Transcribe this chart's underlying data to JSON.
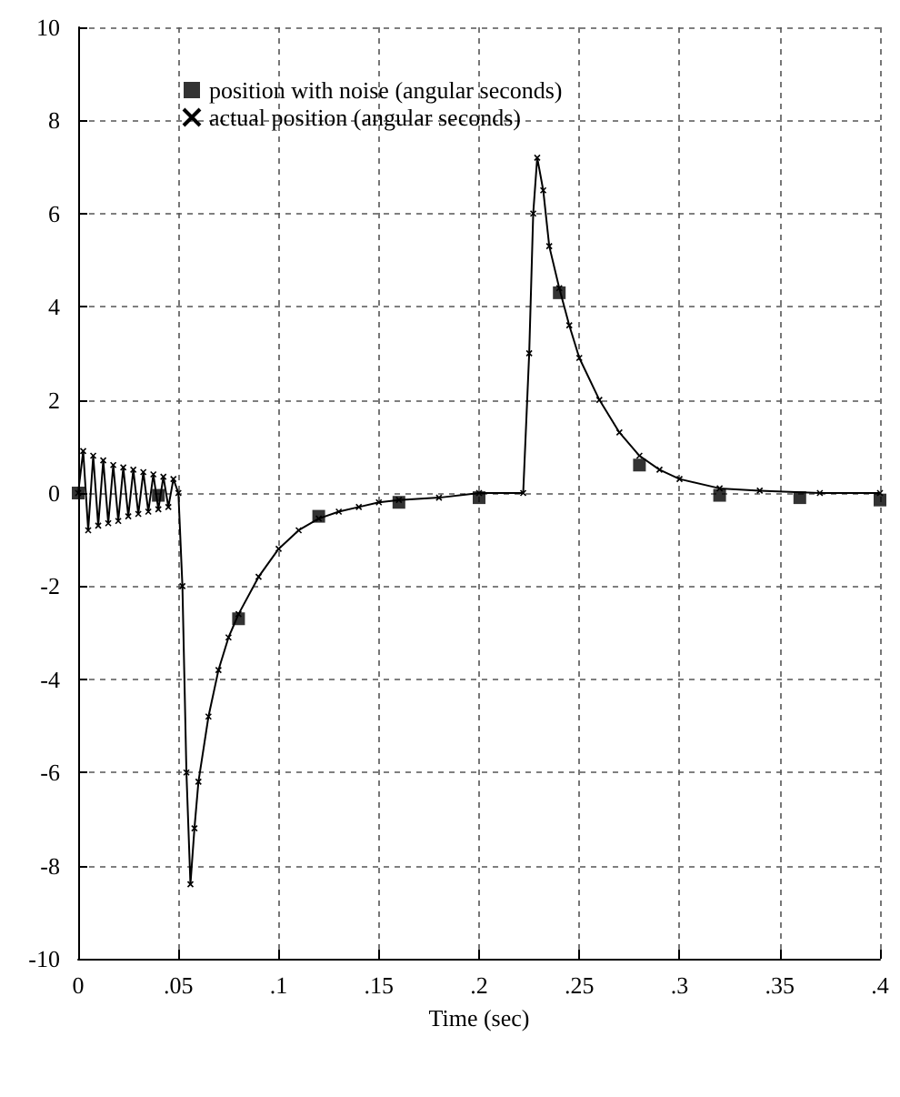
{
  "chart_data": {
    "type": "line",
    "xlabel": "Time (sec)",
    "xlim": [
      0,
      0.4
    ],
    "xticks": [
      0,
      {
        "value": 0.05,
        "label": ".05"
      },
      {
        "value": 0.1,
        "label": ".1"
      },
      {
        "value": 0.15,
        "label": ".15"
      },
      {
        "value": 0.2,
        "label": ".2"
      },
      {
        "value": 0.25,
        "label": ".25"
      },
      {
        "value": 0.3,
        "label": ".3"
      },
      {
        "value": 0.35,
        "label": ".35"
      },
      {
        "value": 0.4,
        "label": ".4"
      }
    ],
    "ylim": [
      -10,
      10
    ],
    "yticks": [
      -10,
      -8,
      -6,
      -4,
      -2,
      0,
      2,
      4,
      6,
      8,
      10
    ],
    "grid": true,
    "legend": "top left",
    "series": [
      {
        "name": "position with noise (angular seconds)",
        "type": "scatter",
        "marker": "square",
        "color": "#000000",
        "x": [
          0,
          0.04,
          0.08,
          0.12,
          0.16,
          0.2,
          0.24,
          0.28,
          0.32,
          0.36,
          0.4
        ],
        "values": [
          0,
          -0.05,
          -2.7,
          -0.5,
          -0.2,
          -0.1,
          4.3,
          0.6,
          -0.05,
          -0.1,
          -0.15
        ]
      },
      {
        "name": "actual position (angular seconds)",
        "marker": "cross",
        "color": "#000000",
        "x": [
          0,
          0.0025,
          0.005,
          0.0075,
          0.01,
          0.0125,
          0.015,
          0.0175,
          0.02,
          0.0225,
          0.025,
          0.0275,
          0.03,
          0.0325,
          0.035,
          0.0375,
          0.04,
          0.0425,
          0.045,
          0.0475,
          0.05,
          0.052,
          0.054,
          0.056,
          0.058,
          0.06,
          0.065,
          0.07,
          0.075,
          0.08,
          0.09,
          0.1,
          0.11,
          0.12,
          0.13,
          0.14,
          0.15,
          0.16,
          0.18,
          0.2,
          0.222,
          0.225,
          0.227,
          0.229,
          0.232,
          0.235,
          0.24,
          0.245,
          0.25,
          0.26,
          0.27,
          0.28,
          0.29,
          0.3,
          0.32,
          0.34,
          0.37,
          0.4
        ],
        "values": [
          0,
          0.9,
          -0.8,
          0.8,
          -0.7,
          0.7,
          -0.65,
          0.6,
          -0.6,
          0.55,
          -0.5,
          0.5,
          -0.45,
          0.45,
          -0.4,
          0.4,
          -0.35,
          0.35,
          -0.3,
          0.3,
          0,
          -2,
          -6,
          -8.4,
          -7.2,
          -6.2,
          -4.8,
          -3.8,
          -3.1,
          -2.6,
          -1.8,
          -1.2,
          -0.8,
          -0.55,
          -0.4,
          -0.3,
          -0.2,
          -0.15,
          -0.1,
          0,
          0,
          3,
          6,
          7.2,
          6.5,
          5.3,
          4.4,
          3.6,
          2.9,
          2,
          1.3,
          0.8,
          0.5,
          0.3,
          0.1,
          0.05,
          0,
          0
        ]
      }
    ]
  }
}
